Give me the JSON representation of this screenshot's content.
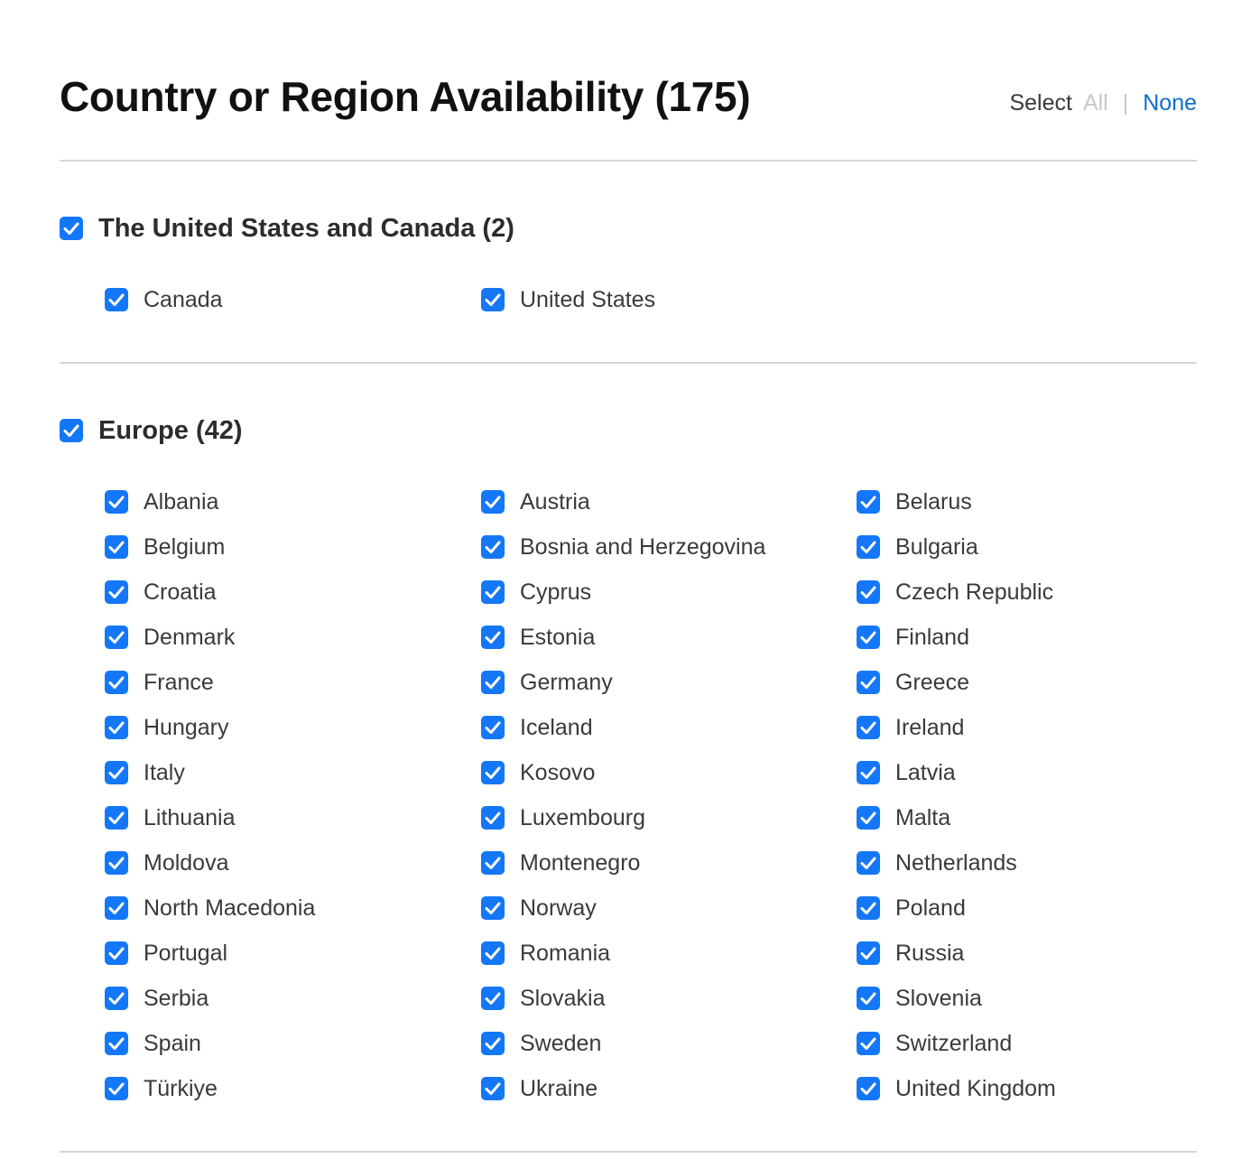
{
  "header": {
    "title": "Country or Region Availability (175)",
    "select_label": "Select",
    "select_all": "All",
    "separator": "|",
    "select_none": "None"
  },
  "colors": {
    "checkbox": "#1477f8",
    "link": "#0a6fce",
    "disabled": "#c7c7cc",
    "divider": "#d6d6d8"
  },
  "sections": [
    {
      "title": "The United States and Canada (2)",
      "checked": true,
      "items": [
        {
          "label": "Canada",
          "checked": true
        },
        {
          "label": "United States",
          "checked": true
        }
      ]
    },
    {
      "title": "Europe (42)",
      "checked": true,
      "items": [
        {
          "label": "Albania",
          "checked": true
        },
        {
          "label": "Austria",
          "checked": true
        },
        {
          "label": "Belarus",
          "checked": true
        },
        {
          "label": "Belgium",
          "checked": true
        },
        {
          "label": "Bosnia and Herzegovina",
          "checked": true
        },
        {
          "label": "Bulgaria",
          "checked": true
        },
        {
          "label": "Croatia",
          "checked": true
        },
        {
          "label": "Cyprus",
          "checked": true
        },
        {
          "label": "Czech Republic",
          "checked": true
        },
        {
          "label": "Denmark",
          "checked": true
        },
        {
          "label": "Estonia",
          "checked": true
        },
        {
          "label": "Finland",
          "checked": true
        },
        {
          "label": "France",
          "checked": true
        },
        {
          "label": "Germany",
          "checked": true
        },
        {
          "label": "Greece",
          "checked": true
        },
        {
          "label": "Hungary",
          "checked": true
        },
        {
          "label": "Iceland",
          "checked": true
        },
        {
          "label": "Ireland",
          "checked": true
        },
        {
          "label": "Italy",
          "checked": true
        },
        {
          "label": "Kosovo",
          "checked": true
        },
        {
          "label": "Latvia",
          "checked": true
        },
        {
          "label": "Lithuania",
          "checked": true
        },
        {
          "label": "Luxembourg",
          "checked": true
        },
        {
          "label": "Malta",
          "checked": true
        },
        {
          "label": "Moldova",
          "checked": true
        },
        {
          "label": "Montenegro",
          "checked": true
        },
        {
          "label": "Netherlands",
          "checked": true
        },
        {
          "label": "North Macedonia",
          "checked": true
        },
        {
          "label": "Norway",
          "checked": true
        },
        {
          "label": "Poland",
          "checked": true
        },
        {
          "label": "Portugal",
          "checked": true
        },
        {
          "label": "Romania",
          "checked": true
        },
        {
          "label": "Russia",
          "checked": true
        },
        {
          "label": "Serbia",
          "checked": true
        },
        {
          "label": "Slovakia",
          "checked": true
        },
        {
          "label": "Slovenia",
          "checked": true
        },
        {
          "label": "Spain",
          "checked": true
        },
        {
          "label": "Sweden",
          "checked": true
        },
        {
          "label": "Switzerland",
          "checked": true
        },
        {
          "label": "Türkiye",
          "checked": true
        },
        {
          "label": "Ukraine",
          "checked": true
        },
        {
          "label": "United Kingdom",
          "checked": true
        }
      ]
    }
  ]
}
